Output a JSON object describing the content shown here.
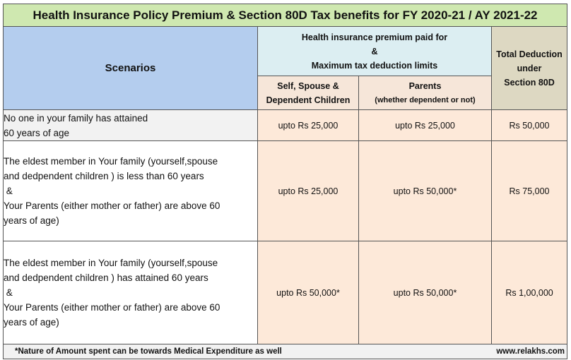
{
  "title": "Health Insurance Policy Premium & Section 80D Tax benefits for FY 2020-21 / AY 2021-22",
  "header": {
    "scenarios": "Scenarios",
    "premium_lines": [
      "Health insurance premium paid for",
      "&",
      "Maximum tax deduction limits"
    ],
    "self_lines": [
      "Self, Spouse &",
      "Dependent Children"
    ],
    "parents": "Parents",
    "parents_note": "(whether dependent or not)",
    "total_lines": [
      "Total Deduction",
      "under",
      "Section 80D"
    ]
  },
  "rows": [
    {
      "scenario_lines": [
        "No one in your family has attained",
        "60 years of age"
      ],
      "self": "upto Rs 25,000",
      "parents": "upto Rs 25,000",
      "total": "Rs 50,000"
    },
    {
      "scenario_lines": [
        "The eldest member in Your family (yourself,spouse",
        "and dedpendent children ) is less than 60 years",
        " &",
        "Your Parents (either mother or father) are above 60",
        "years of age)"
      ],
      "self": "upto Rs 25,000",
      "parents": "upto Rs 50,000*",
      "total": "Rs 75,000"
    },
    {
      "scenario_lines": [
        "The eldest member in Your family (yourself,spouse",
        "and dedpendent children ) has attained 60 years",
        " &",
        "Your Parents (either mother or father) are above 60",
        "years of age)"
      ],
      "self": "upto Rs 50,000*",
      "parents": "upto Rs 50,000*",
      "total": "Rs 1,00,000"
    }
  ],
  "footer": {
    "note": "*Nature of Amount spent can be towards Medical Expenditure as well",
    "site": "www.relakhs.com"
  }
}
